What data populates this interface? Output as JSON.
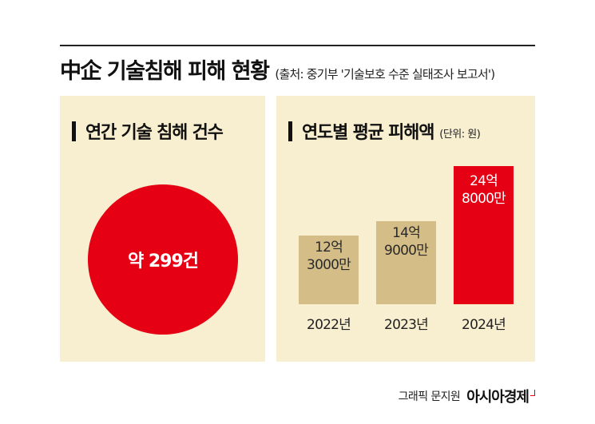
{
  "header": {
    "title": "中企 기술침해 피해 현황",
    "source": "(출처: 중기부 '기술보호 수준 실태조사 보고서')"
  },
  "left_panel": {
    "heading": "연간 기술 침해 건수",
    "circle_label": "약 299건",
    "count": 299
  },
  "right_panel": {
    "heading": "연도별 평균 피해액",
    "unit": "(단위: 원)"
  },
  "chart_data": {
    "type": "bar",
    "title": "연도별 평균 피해액",
    "unit": "원",
    "categories": [
      "2022년",
      "2023년",
      "2024년"
    ],
    "values": [
      1230000000,
      1490000000,
      2480000000
    ],
    "value_labels": [
      [
        "12억",
        "3000만"
      ],
      [
        "14억",
        "9000만"
      ],
      [
        "24억",
        "8000만"
      ]
    ],
    "colors": [
      "#d4bd87",
      "#d4bd87",
      "#e50014"
    ],
    "label_colors": [
      "#2a2a2a",
      "#2a2a2a",
      "#ffffff"
    ],
    "ylim": [
      0,
      2480000000
    ],
    "grid": false,
    "legend": "none"
  },
  "footer": {
    "credit": "그래픽 문지원",
    "brand": "아시아경제"
  },
  "colors": {
    "accent_red": "#e50014",
    "panel_bg": "#f8eed0",
    "bar_tan": "#d4bd87"
  }
}
